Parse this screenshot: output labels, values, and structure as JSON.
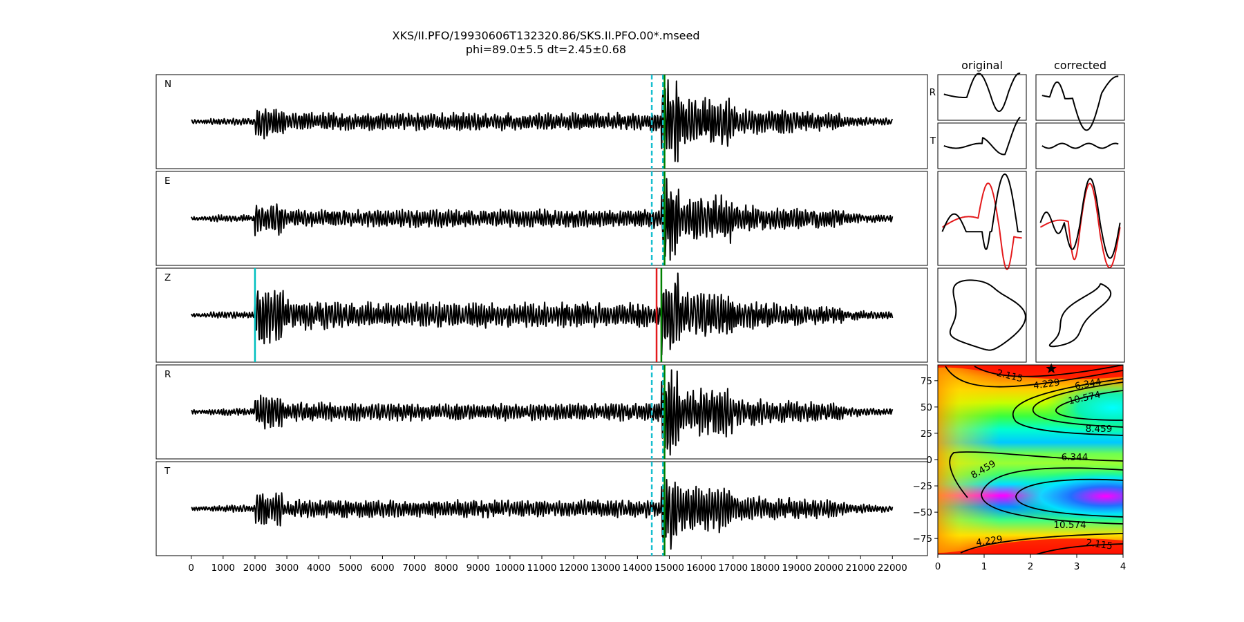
{
  "title": {
    "line1": "XKS/II.PFO/19930606T132320.86/SKS.II.PFO.00*.mseed",
    "line2": "phi=89.0±5.5 dt=2.45±0.68"
  },
  "chart_data": [
    {
      "type": "line",
      "name": "waveforms",
      "components": [
        "N",
        "E",
        "Z",
        "R",
        "T"
      ],
      "x_ticks": [
        0,
        1000,
        2000,
        3000,
        4000,
        5000,
        6000,
        7000,
        8000,
        9000,
        10000,
        11000,
        12000,
        13000,
        14000,
        15000,
        16000,
        17000,
        18000,
        19000,
        20000,
        21000,
        22000
      ],
      "xlim": [
        -1100,
        23100
      ],
      "x_range": [
        0,
        22000
      ],
      "picks": {
        "window": [
          14450,
          14800
        ],
        "z_cyan": 2000,
        "z_red": 14600,
        "z_green": 14750,
        "green": 14850
      },
      "colors": {
        "trace": "#000000",
        "window": "#17becf",
        "z_pick": "#00bfbf",
        "red_pick": "#e41a1c",
        "green_pick": "#008000"
      }
    },
    {
      "type": "line",
      "name": "particle-motion",
      "columns": [
        "original",
        "corrected"
      ],
      "rows": [
        "R",
        "T"
      ]
    },
    {
      "type": "heatmap",
      "name": "error-surface",
      "x_ticks": [
        0,
        1,
        2,
        3,
        4
      ],
      "y_ticks": [
        75,
        50,
        25,
        0,
        -25,
        -50,
        -75
      ],
      "xlim": [
        0,
        4
      ],
      "ylim": [
        -90,
        90
      ],
      "contour_labels": [
        "2.115",
        "4.229",
        "6.344",
        "10.574",
        "8.459",
        "6.344",
        "8.459",
        "10.574",
        "4.229",
        "2.115"
      ],
      "best": {
        "dt": 2.45,
        "phi": 89.0
      }
    }
  ]
}
